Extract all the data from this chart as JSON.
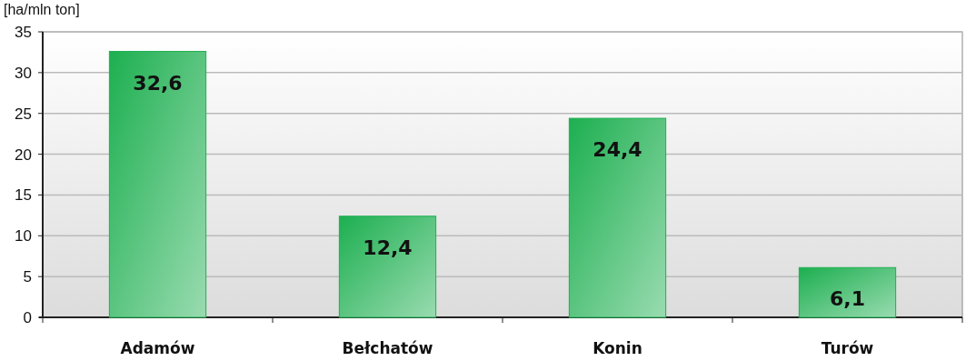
{
  "chart_data": {
    "type": "bar",
    "ylabel": "[ha/mln ton]",
    "categories": [
      "Adamów",
      "Bełchatów",
      "Konin",
      "Turów"
    ],
    "values": [
      32.6,
      12.4,
      24.4,
      6.1
    ],
    "value_labels": [
      "32,6",
      "12,4",
      "24,4",
      "6,1"
    ],
    "color": "#1daf50",
    "ylim": [
      0,
      35
    ],
    "yticks": [
      0,
      5,
      10,
      15,
      20,
      25,
      30,
      35
    ],
    "grid": "y"
  }
}
